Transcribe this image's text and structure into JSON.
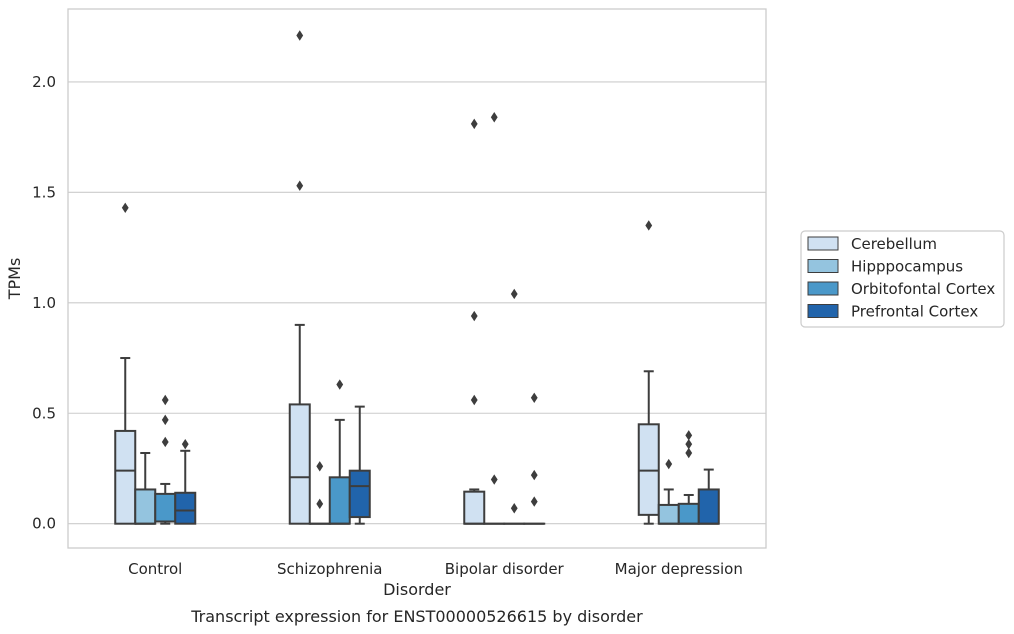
{
  "chart_data": {
    "type": "box",
    "xlabel": "Disorder",
    "ylabel": "TPMs",
    "caption": "Transcript expression for ENST00000526615 by disorder",
    "ylim": [
      -0.11,
      2.33
    ],
    "yticks": [
      0.0,
      0.5,
      1.0,
      1.5,
      2.0
    ],
    "ytick_labels": [
      "0.0",
      "0.5",
      "1.0",
      "1.5",
      "2.0"
    ],
    "grid": "horizontal",
    "legend_position": "right",
    "categories": [
      "Control",
      "Schizophrenia",
      "Bipolar disorder",
      "Major depression"
    ],
    "series": [
      {
        "name": "Cerebellum",
        "color": "#d0e1f2"
      },
      {
        "name": "Hipppocampus",
        "color": "#94c4df"
      },
      {
        "name": "Orbitofontal Cortex",
        "color": "#4a98c9"
      },
      {
        "name": "Prefrontal Cortex",
        "color": "#2164ab"
      }
    ],
    "boxes": [
      [
        {
          "whislo": 0.0,
          "q1": 0.0,
          "med": 0.24,
          "q3": 0.42,
          "whishi": 0.75,
          "fliers": [
            1.43
          ]
        },
        {
          "whislo": 0.0,
          "q1": 0.0,
          "med": 0.0,
          "q3": 0.155,
          "whishi": 0.32,
          "fliers": []
        },
        {
          "whislo": 0.0,
          "q1": 0.01,
          "med": 0.01,
          "q3": 0.135,
          "whishi": 0.18,
          "fliers": [
            0.37,
            0.47,
            0.56
          ]
        },
        {
          "whislo": 0.0,
          "q1": 0.0,
          "med": 0.06,
          "q3": 0.14,
          "whishi": 0.33,
          "fliers": [
            0.36
          ]
        }
      ],
      [
        {
          "whislo": 0.0,
          "q1": 0.0,
          "med": 0.21,
          "q3": 0.54,
          "whishi": 0.9,
          "fliers": [
            1.53,
            2.21
          ]
        },
        {
          "whislo": 0.0,
          "q1": 0.0,
          "med": 0.0,
          "q3": 0.0,
          "whishi": 0.0,
          "fliers": [
            0.09,
            0.26
          ]
        },
        {
          "whislo": 0.0,
          "q1": 0.0,
          "med": 0.0,
          "q3": 0.21,
          "whishi": 0.47,
          "fliers": [
            0.63
          ]
        },
        {
          "whislo": 0.0,
          "q1": 0.03,
          "med": 0.17,
          "q3": 0.24,
          "whishi": 0.53,
          "fliers": []
        }
      ],
      [
        {
          "whislo": 0.0,
          "q1": 0.0,
          "med": 0.0,
          "q3": 0.145,
          "whishi": 0.155,
          "fliers": [
            0.56,
            0.94,
            1.81
          ]
        },
        {
          "whislo": 0.0,
          "q1": 0.0,
          "med": 0.0,
          "q3": 0.0,
          "whishi": 0.0,
          "fliers": [
            0.2,
            1.84
          ]
        },
        {
          "whislo": 0.0,
          "q1": 0.0,
          "med": 0.0,
          "q3": 0.0,
          "whishi": 0.0,
          "fliers": [
            0.07,
            1.04
          ]
        },
        {
          "whislo": 0.0,
          "q1": 0.0,
          "med": 0.0,
          "q3": 0.0,
          "whishi": 0.0,
          "fliers": [
            0.1,
            0.22,
            0.57
          ]
        }
      ],
      [
        {
          "whislo": 0.0,
          "q1": 0.04,
          "med": 0.24,
          "q3": 0.45,
          "whishi": 0.69,
          "fliers": [
            1.35
          ]
        },
        {
          "whislo": 0.0,
          "q1": 0.0,
          "med": 0.0,
          "q3": 0.085,
          "whishi": 0.155,
          "fliers": [
            0.27
          ]
        },
        {
          "whislo": 0.0,
          "q1": 0.0,
          "med": 0.0,
          "q3": 0.09,
          "whishi": 0.13,
          "fliers": [
            0.32,
            0.36,
            0.4
          ]
        },
        {
          "whislo": 0.0,
          "q1": 0.0,
          "med": 0.0,
          "q3": 0.155,
          "whishi": 0.245,
          "fliers": []
        }
      ]
    ]
  }
}
